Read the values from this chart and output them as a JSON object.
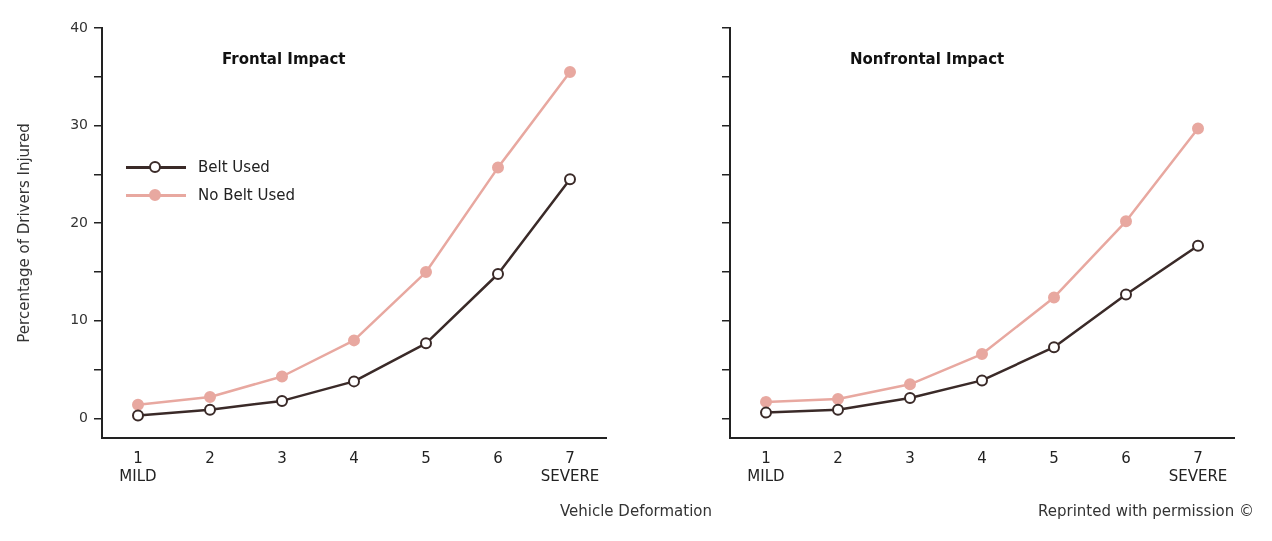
{
  "chart_data": [
    {
      "type": "line",
      "title": "Frontal Impact",
      "xlabel": "Vehicle Deformation",
      "ylabel": "Percentage of Drivers Injured",
      "categories": [
        "1\nMILD",
        "2",
        "3",
        "4",
        "5",
        "6",
        "7\nSEVERE"
      ],
      "series": [
        {
          "name": "Belt Used",
          "color": "#3a2a28",
          "values": [
            0.3,
            0.9,
            1.8,
            3.8,
            7.7,
            14.8,
            24.5
          ]
        },
        {
          "name": "No Belt Used",
          "color": "#e8a8a0",
          "values": [
            1.4,
            2.2,
            4.3,
            8.0,
            15.0,
            25.7,
            35.5
          ]
        }
      ],
      "ylim": [
        -2,
        40
      ],
      "yticks": [
        0,
        {
          "value": 5,
          "label": null
        },
        10,
        {
          "value": 15,
          "label": null
        },
        20,
        {
          "value": 25,
          "label": null
        },
        30,
        {
          "value": 35,
          "label": null
        },
        40
      ],
      "grid": false,
      "legend": "top left",
      "marker": "circle",
      "line_style": "solid"
    },
    {
      "type": "line",
      "title": "Nonfrontal Impact",
      "annotations": [
        "Reprinted with permission ©"
      ],
      "categories": [
        "1\nMILD",
        "2",
        "3",
        "4",
        "5",
        "6",
        "7\nSEVERE"
      ],
      "series": [
        {
          "color": "#3a2a28",
          "values": [
            0.6,
            0.9,
            2.1,
            3.9,
            7.3,
            12.7,
            17.7
          ]
        },
        {
          "color": "#e8a8a0",
          "values": [
            1.7,
            2.0,
            3.5,
            6.6,
            12.4,
            20.2,
            29.7
          ]
        }
      ],
      "ylim": [
        -2,
        40
      ],
      "yticks": [
        0,
        {
          "value": 5,
          "label": null
        },
        10,
        {
          "value": 15,
          "label": null
        },
        20,
        {
          "value": 25,
          "label": null
        },
        30,
        {
          "value": 35,
          "label": null
        },
        40
      ],
      "grid": false,
      "legend": false,
      "marker": "circle",
      "line_style": "solid",
      "tick_labels": "x"
    }
  ]
}
